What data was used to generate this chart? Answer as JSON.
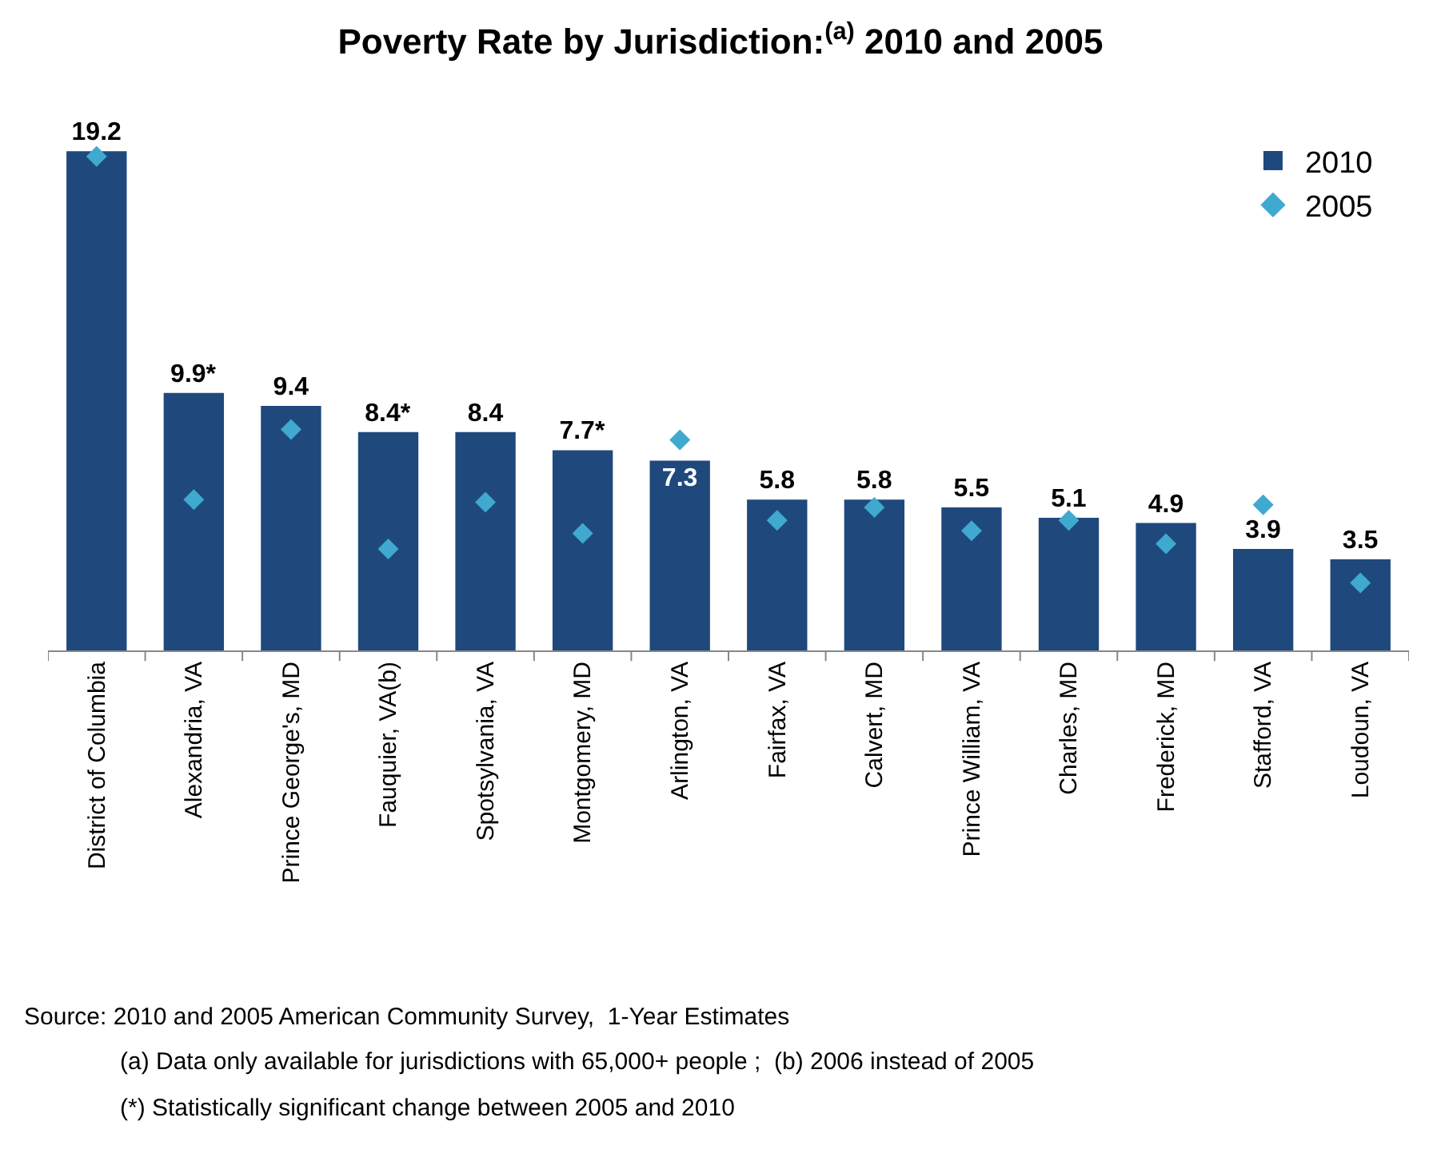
{
  "chart_data": {
    "type": "bar",
    "title": "Poverty Rate by Jurisdiction:$^{(a)}$ 2010 and 2005",
    "categories": [
      "District of Columbia",
      "Alexandria, VA",
      "Prince George's, MD",
      "Fauquier, VA(b)",
      "Spotsylvania, VA",
      "Montgomery, MD",
      "Arlington, VA",
      "Fairfax, VA",
      "Calvert, MD",
      "Prince William, VA",
      "Charles, MD",
      "Frederick, MD",
      "Stafford, VA",
      "Loudoun, VA"
    ],
    "series": [
      {
        "name": "2010",
        "color": "#1f497d",
        "values": [
          19.2,
          9.9,
          9.4,
          8.4,
          8.4,
          7.7,
          7.3,
          5.8,
          5.8,
          5.5,
          5.1,
          4.9,
          3.9,
          3.5
        ],
        "value_labels": [
          "19.2",
          "9.9*",
          "9.4",
          "8.4*",
          "8.4",
          "7.7*",
          "7.3",
          "5.8",
          "5.8",
          "5.5",
          "5.1",
          "4.9",
          "3.9",
          "3.5"
        ]
      },
      {
        "name": "2005",
        "type": "scatter",
        "color": "#3fa9d0",
        "marker": "diamond",
        "values": [
          19.0,
          5.8,
          8.5,
          3.9,
          5.7,
          4.5,
          8.1,
          5.0,
          5.5,
          4.6,
          5.0,
          4.1,
          5.6,
          2.6
        ]
      }
    ],
    "legend": "top right",
    "annotations": [
      "Source: 2010 and 2005 American Community Survey,  1-Year Estimates",
      "(a) Data only available for jurisdictions with 65,000+ people ;  (b) 2006 instead of 2005",
      "(*) Statistically significant change between 2005 and 2010"
    ]
  }
}
